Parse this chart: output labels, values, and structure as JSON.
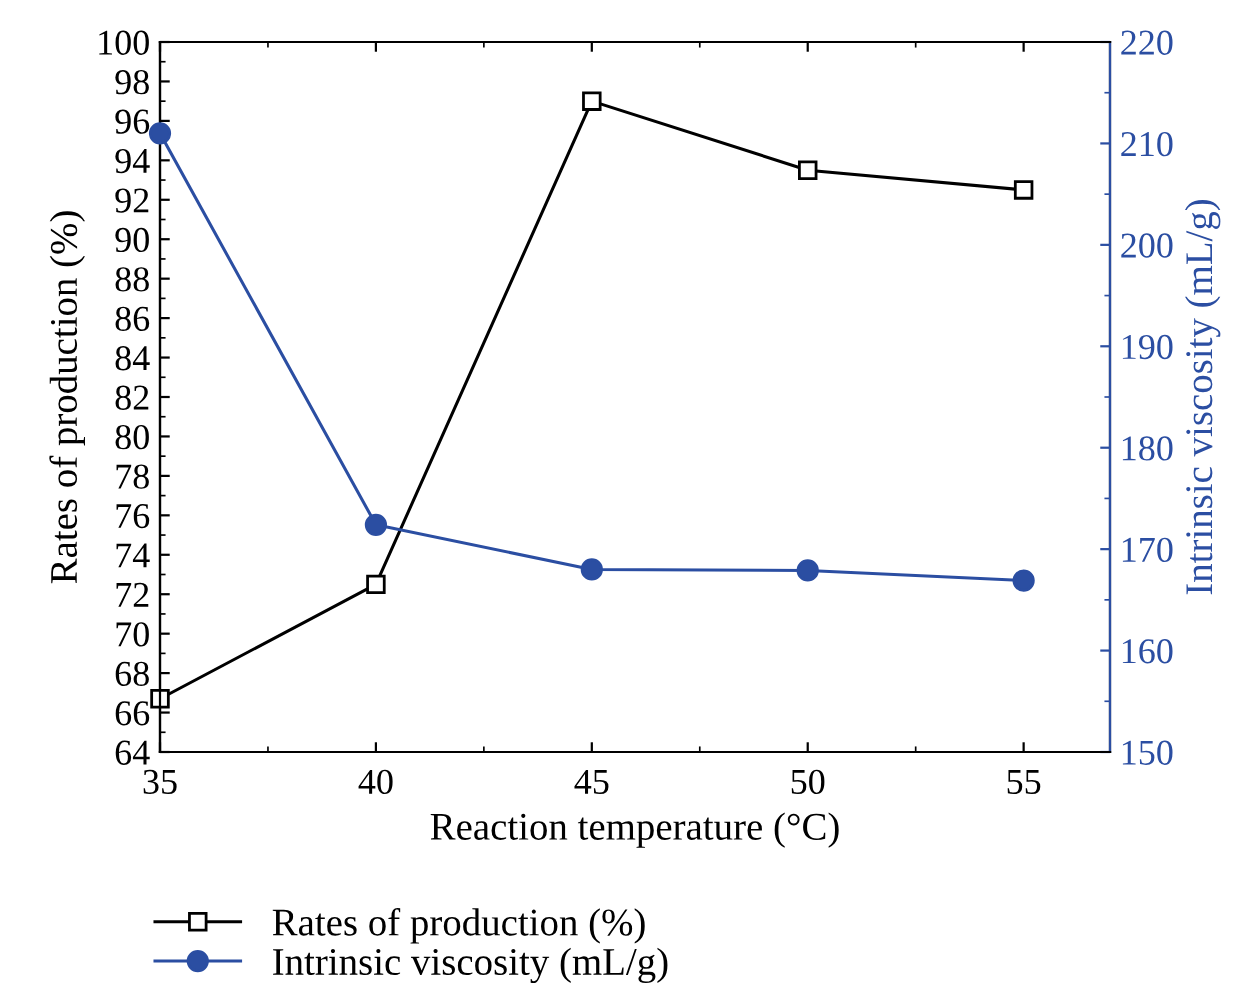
{
  "chart_data": {
    "type": "line",
    "xlabel": "Reaction temperature (°C)",
    "ylabel": "Rates of production (%)",
    "y2label": "Intrinsic viscosity (mL/g)",
    "x": [
      35,
      40,
      45,
      50,
      55
    ],
    "series": [
      {
        "name": "Rates of production (%)",
        "color": "#000000",
        "marker": "square",
        "values": [
          66.7,
          72.5,
          97.0,
          93.5,
          92.5
        ]
      },
      {
        "name": "Intrinsic viscosity (mL/g)",
        "color": "#2b4ea2",
        "marker": "circle",
        "axis": "y2",
        "values": [
          211.0,
          172.4,
          168.0,
          167.9,
          166.9
        ]
      }
    ],
    "xlim": [
      35,
      57
    ],
    "xticks": [
      35,
      40,
      45,
      50,
      55
    ],
    "ylim": [
      64,
      100
    ],
    "yticks": [
      64,
      66,
      68,
      70,
      72,
      74,
      76,
      78,
      80,
      82,
      84,
      86,
      88,
      90,
      92,
      94,
      96,
      98,
      100
    ],
    "y2lim": [
      150,
      220
    ],
    "y2ticks": [
      150,
      160,
      170,
      180,
      190,
      200,
      210,
      220
    ],
    "grid": false,
    "legend": "bottom left",
    "line_style": "solid"
  }
}
